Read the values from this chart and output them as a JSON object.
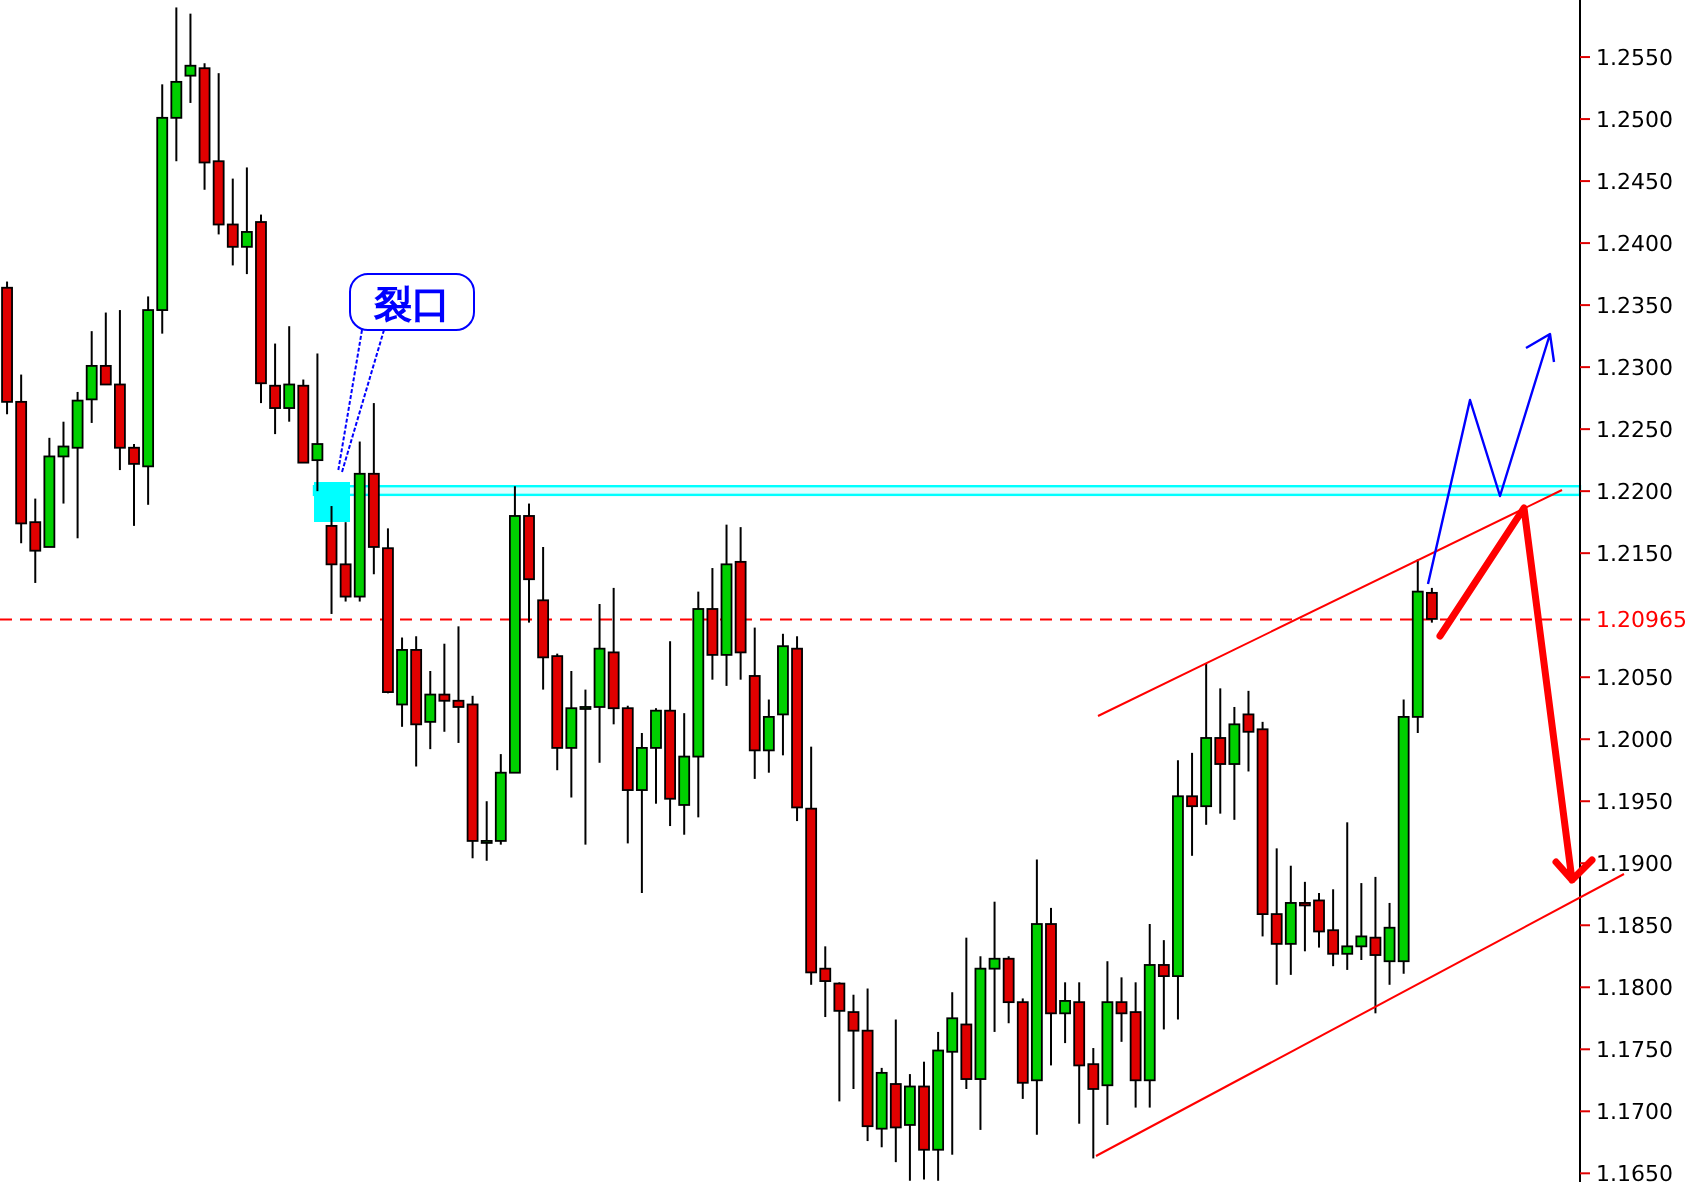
{
  "chart_data": {
    "type": "candlestick",
    "categories": [
      null,
      null,
      null,
      null,
      null,
      null,
      null,
      null,
      null,
      null,
      null,
      null,
      null,
      null,
      null,
      null,
      null,
      null,
      null,
      null,
      null,
      null,
      null,
      null,
      null,
      null,
      null,
      null,
      null,
      null,
      null,
      null,
      null,
      null,
      null,
      null,
      null,
      null,
      null,
      null,
      null,
      null,
      null,
      null,
      null,
      null,
      null,
      null,
      null,
      null,
      null,
      null,
      null,
      null,
      null,
      null,
      null,
      null,
      null,
      null,
      null,
      null,
      null,
      null,
      null,
      null,
      null,
      null,
      null,
      null,
      null,
      null,
      null,
      null,
      null,
      null,
      null,
      null,
      null,
      null,
      null,
      null,
      null,
      null,
      null,
      null,
      null,
      null,
      null,
      null,
      null,
      null,
      null,
      null,
      null,
      null,
      null,
      null,
      null,
      null,
      null,
      null,
      null,
      null,
      null,
      null,
      null,
      null,
      null,
      null,
      null,
      null
    ],
    "ohlc": [
      [
        1.2364,
        1.2369,
        1.2262,
        1.2272
      ],
      [
        1.2272,
        1.2294,
        1.2158,
        1.2174
      ],
      [
        1.2175,
        1.2194,
        1.2126,
        1.2152
      ],
      [
        1.2155,
        1.2243,
        1.2155,
        1.2228
      ],
      [
        1.2228,
        1.2256,
        1.219,
        1.2236
      ],
      [
        1.2235,
        1.228,
        1.2162,
        1.2273
      ],
      [
        1.2274,
        1.2329,
        1.2255,
        1.2301
      ],
      [
        1.2301,
        1.2344,
        1.2286,
        1.2286
      ],
      [
        1.2286,
        1.2346,
        1.2217,
        1.2235
      ],
      [
        1.2235,
        1.2238,
        1.2172,
        1.2222
      ],
      [
        1.222,
        1.2357,
        1.2189,
        1.2346
      ],
      [
        1.2346,
        1.2528,
        1.2327,
        1.2501
      ],
      [
        1.2501,
        1.259,
        1.2466,
        1.253
      ],
      [
        1.2535,
        1.2585,
        1.2513,
        1.2543
      ],
      [
        1.2541,
        1.2545,
        1.2443,
        1.2465
      ],
      [
        1.2466,
        1.2537,
        1.2407,
        1.2415
      ],
      [
        1.2415,
        1.2452,
        1.2382,
        1.2397
      ],
      [
        1.2397,
        1.2461,
        1.2375,
        1.2409
      ],
      [
        1.2417,
        1.2423,
        1.2271,
        1.2287
      ],
      [
        1.2285,
        1.2319,
        1.2246,
        1.2267
      ],
      [
        1.2267,
        1.2333,
        1.2256,
        1.2286
      ],
      [
        1.2285,
        1.229,
        1.2223,
        1.2223
      ],
      [
        1.2225,
        1.2311,
        1.22,
        1.2238
      ],
      [
        1.2172,
        1.2188,
        1.2101,
        1.2141
      ],
      [
        1.2141,
        1.2175,
        1.2111,
        1.2115
      ],
      [
        1.2115,
        1.224,
        1.2111,
        1.2214
      ],
      [
        1.2214,
        1.2271,
        1.2133,
        1.2155
      ],
      [
        1.2154,
        1.217,
        1.2037,
        1.2038
      ],
      [
        1.2028,
        1.2082,
        1.201,
        1.2072
      ],
      [
        1.2072,
        1.2083,
        1.1978,
        1.2012
      ],
      [
        1.2014,
        1.2055,
        1.1992,
        1.2036
      ],
      [
        1.2036,
        1.2077,
        1.2006,
        1.2031
      ],
      [
        1.2031,
        1.2091,
        1.1997,
        1.2026
      ],
      [
        1.2028,
        1.2035,
        1.1904,
        1.1918
      ],
      [
        1.1918,
        1.195,
        1.1902,
        1.1918
      ],
      [
        1.1918,
        1.1988,
        1.1915,
        1.1973
      ],
      [
        1.1973,
        1.2204,
        1.1973,
        1.218
      ],
      [
        1.218,
        1.219,
        1.2094,
        1.2129
      ],
      [
        1.2112,
        1.2155,
        1.204,
        1.2066
      ],
      [
        1.2067,
        1.2069,
        1.1975,
        1.1993
      ],
      [
        1.1993,
        1.2055,
        1.1953,
        1.2025
      ],
      [
        1.2026,
        1.204,
        1.1915,
        1.2026
      ],
      [
        1.2026,
        1.2109,
        1.1981,
        1.2073
      ],
      [
        1.207,
        1.2122,
        1.2012,
        1.2025
      ],
      [
        1.2025,
        1.2027,
        1.1916,
        1.1959
      ],
      [
        1.1959,
        1.2005,
        1.1876,
        1.1993
      ],
      [
        1.1993,
        1.2025,
        1.1948,
        1.2023
      ],
      [
        1.2023,
        1.2079,
        1.193,
        1.1952
      ],
      [
        1.1947,
        1.2021,
        1.1923,
        1.1986
      ],
      [
        1.1986,
        1.2119,
        1.1937,
        1.2105
      ],
      [
        1.2105,
        1.2138,
        1.2048,
        1.2068
      ],
      [
        1.2068,
        1.2173,
        1.2043,
        1.2141
      ],
      [
        1.2143,
        1.2171,
        1.2048,
        1.207
      ],
      [
        1.2051,
        1.209,
        1.1968,
        1.1991
      ],
      [
        1.1991,
        1.2032,
        1.1973,
        1.2018
      ],
      [
        1.202,
        1.2085,
        1.1987,
        1.2075
      ],
      [
        1.2073,
        1.2083,
        1.1934,
        1.1945
      ],
      [
        1.1944,
        1.1994,
        1.1802,
        1.1812
      ],
      [
        1.1815,
        1.1833,
        1.1776,
        1.1805
      ],
      [
        1.1803,
        1.1804,
        1.1708,
        1.1781
      ],
      [
        1.178,
        1.1794,
        1.1718,
        1.1765
      ],
      [
        1.1765,
        1.1799,
        1.1676,
        1.1688
      ],
      [
        1.1686,
        1.1735,
        1.1671,
        1.1731
      ],
      [
        1.1722,
        1.1774,
        1.1659,
        1.1687
      ],
      [
        1.1689,
        1.173,
        1.1644,
        1.172
      ],
      [
        1.172,
        1.174,
        1.1645,
        1.1669
      ],
      [
        1.1669,
        1.1764,
        1.1644,
        1.1749
      ],
      [
        1.1748,
        1.1796,
        1.1665,
        1.1775
      ],
      [
        1.177,
        1.184,
        1.1718,
        1.1726
      ],
      [
        1.1726,
        1.1825,
        1.1685,
        1.1815
      ],
      [
        1.1815,
        1.1869,
        1.1764,
        1.1823
      ],
      [
        1.1823,
        1.1825,
        1.1771,
        1.1788
      ],
      [
        1.1788,
        1.1791,
        1.171,
        1.1723
      ],
      [
        1.1725,
        1.1903,
        1.1681,
        1.1851
      ],
      [
        1.1851,
        1.1864,
        1.1737,
        1.1779
      ],
      [
        1.1779,
        1.1804,
        1.1755,
        1.1789
      ],
      [
        1.1788,
        1.1804,
        1.169,
        1.1737
      ],
      [
        1.1738,
        1.1751,
        1.1662,
        1.1718
      ],
      [
        1.1721,
        1.1821,
        1.1689,
        1.1788
      ],
      [
        1.1788,
        1.1808,
        1.1756,
        1.1779
      ],
      [
        1.178,
        1.1804,
        1.1703,
        1.1725
      ],
      [
        1.1725,
        1.1851,
        1.1703,
        1.1818
      ],
      [
        1.1818,
        1.1838,
        1.1766,
        1.1809
      ],
      [
        1.1809,
        1.1983,
        1.1774,
        1.1954
      ],
      [
        1.1954,
        1.1989,
        1.1906,
        1.1946
      ],
      [
        1.1946,
        1.2061,
        1.1931,
        1.2001
      ],
      [
        1.2001,
        1.2041,
        1.194,
        1.198
      ],
      [
        1.198,
        1.2026,
        1.1935,
        1.2012
      ],
      [
        1.202,
        1.2039,
        1.1974,
        1.2006
      ],
      [
        1.2008,
        1.2014,
        1.1841,
        1.1859
      ],
      [
        1.1859,
        1.1912,
        1.1802,
        1.1835
      ],
      [
        1.1835,
        1.1898,
        1.181,
        1.1868
      ],
      [
        1.1868,
        1.1885,
        1.1829,
        1.1866
      ],
      [
        1.187,
        1.1876,
        1.1832,
        1.1845
      ],
      [
        1.1846,
        1.1879,
        1.1817,
        1.1827
      ],
      [
        1.1827,
        1.1933,
        1.1814,
        1.1833
      ],
      [
        1.1833,
        1.1884,
        1.1822,
        1.1841
      ],
      [
        1.184,
        1.1889,
        1.1779,
        1.1826
      ],
      [
        1.1821,
        1.1868,
        1.1802,
        1.1848
      ],
      [
        1.1821,
        1.2032,
        1.1811,
        1.2018
      ],
      [
        1.2018,
        1.2145,
        1.2005,
        1.2119
      ],
      [
        1.2118,
        1.2122,
        1.2094,
        1.2097
      ],
      null,
      null,
      null,
      null,
      null,
      null,
      null,
      null,
      null,
      null
    ],
    "colors": [
      "#e00000",
      "#e00000",
      "#e00000",
      "#00d000",
      "#00d000",
      "#00d000",
      "#00d000",
      "#e00000",
      "#e00000",
      "#e00000",
      "#00d000",
      "#00d000",
      "#00d000",
      "#00d000",
      "#e00000",
      "#e00000",
      "#e00000",
      "#00d000",
      "#e00000",
      "#e00000",
      "#00d000",
      "#e00000",
      "#00d000",
      "#e00000",
      "#e00000",
      "#00d000",
      "#e00000",
      "#e00000",
      "#00d000",
      "#e00000",
      "#00d000",
      "#e00000",
      "#e00000",
      "#e00000",
      "#00d000",
      "#00d000",
      "#00d000",
      "#e00000",
      "#e00000",
      "#e00000",
      "#00d000",
      "#00d000",
      "#00d000",
      "#e00000",
      "#e00000",
      "#00d000",
      "#00d000",
      "#e00000",
      "#00d000",
      "#00d000",
      "#e00000",
      "#00d000",
      "#e00000",
      "#e00000",
      "#00d000",
      "#00d000",
      "#e00000",
      "#e00000",
      "#e00000",
      "#e00000",
      "#e00000",
      "#e00000",
      "#00d000",
      "#e00000",
      "#00d000",
      "#e00000",
      "#00d000",
      "#00d000",
      "#e00000",
      "#00d000",
      "#00d000",
      "#e00000",
      "#e00000",
      "#00d000",
      "#e00000",
      "#00d000",
      "#e00000",
      "#e00000",
      "#00d000",
      "#e00000",
      "#e00000",
      "#00d000",
      "#e00000",
      "#00d000",
      "#e00000",
      "#00d000",
      "#e00000",
      "#00d000",
      "#e00000",
      "#e00000",
      "#e00000",
      "#00d000",
      "#e00000",
      "#e00000",
      "#e00000",
      "#00d000",
      "#00d000",
      "#e00000",
      "#00d000",
      "#00d000",
      "#00d000",
      "#e00000",
      null,
      null,
      null,
      null,
      null,
      null,
      null,
      null,
      null,
      null
    ],
    "ylim": [
      1.1643,
      1.2596
    ],
    "yticks": [
      {
        "value": 1.165,
        "label": "1.1650"
      },
      {
        "value": 1.17,
        "label": "1.1700"
      },
      {
        "value": 1.175,
        "label": "1.1750"
      },
      {
        "value": 1.18,
        "label": "1.1800"
      },
      {
        "value": 1.185,
        "label": "1.1850"
      },
      {
        "value": 1.19,
        "label": "1.1900"
      },
      {
        "value": 1.195,
        "label": "1.1950"
      },
      {
        "value": 1.2,
        "label": "1.2000"
      },
      {
        "value": 1.205,
        "label": "1.2050"
      },
      {
        "value": 1.215,
        "label": "1.2150"
      },
      {
        "value": 1.22,
        "label": "1.2200"
      },
      {
        "value": 1.225,
        "label": "1.2250"
      },
      {
        "value": 1.23,
        "label": "1.2300"
      },
      {
        "value": 1.235,
        "label": "1.2350"
      },
      {
        "value": 1.24,
        "label": "1.2400"
      },
      {
        "value": 1.245,
        "label": "1.2450"
      },
      {
        "value": 1.25,
        "label": "1.2500"
      },
      {
        "value": 1.255,
        "label": "1.2550"
      }
    ],
    "tick_labels": "y",
    "ref_lines": [
      {
        "axis": "y",
        "value": 1.20965,
        "label": "1.20965",
        "color": "#ff0000",
        "line_style": "dashed"
      }
    ],
    "bands": [
      {
        "axis": "y",
        "from": 1.2197,
        "to": 1.2204,
        "color": "#00ffff"
      }
    ],
    "annotations": [
      "裂口"
    ]
  }
}
